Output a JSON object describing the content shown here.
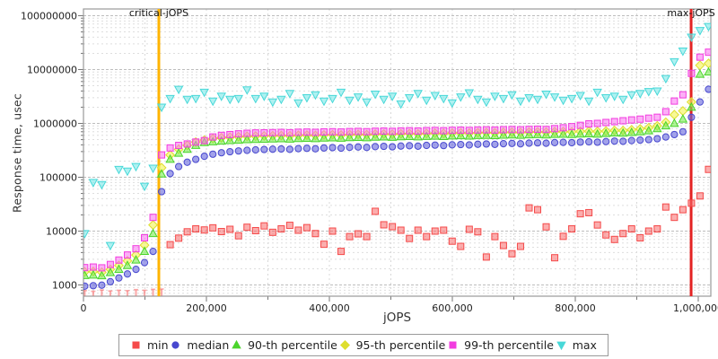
{
  "chart_data": {
    "type": "scatter",
    "title": "",
    "xlabel": "jOPS",
    "ylabel": "Response time, usec",
    "legend_position": "bottom",
    "grid": true,
    "x_axis": {
      "min": 0,
      "max": 1020000,
      "minor_grid_step": 100000,
      "ticks": [
        {
          "value": 0,
          "label": "0"
        },
        {
          "value": 200000,
          "label": "200,000"
        },
        {
          "value": 400000,
          "label": "400,000"
        },
        {
          "value": 600000,
          "label": "600,000"
        },
        {
          "value": 800000,
          "label": "800,000"
        },
        {
          "value": 1000000,
          "label": "1,000,000"
        }
      ]
    },
    "y_axis": {
      "scale": "log",
      "min": 620,
      "max": 133000000,
      "ticks": [
        {
          "value": 1000,
          "label": "1000"
        },
        {
          "value": 10000,
          "label": "10000"
        },
        {
          "value": 100000,
          "label": "100000"
        },
        {
          "value": 1000000,
          "label": "1000000"
        },
        {
          "value": 10000000,
          "label": "10000000"
        },
        {
          "value": 100000000,
          "label": "100000000"
        }
      ]
    },
    "annotations": [
      {
        "label": "critical-jOPS",
        "x": 122600,
        "color": "#ffb400"
      },
      {
        "label": "max-jOPS",
        "x": 988400,
        "color": "#e32222"
      }
    ],
    "x": [
      2000,
      15900,
      29800,
      43700,
      57600,
      71500,
      85400,
      99300,
      113200,
      127100,
      141000,
      154900,
      168800,
      182700,
      196600,
      210500,
      224400,
      238300,
      252200,
      266100,
      280000,
      293900,
      307800,
      321700,
      335600,
      349500,
      363400,
      377300,
      391200,
      405100,
      419000,
      432900,
      446800,
      460700,
      474600,
      488500,
      502400,
      516300,
      530200,
      544100,
      558000,
      571900,
      585800,
      599700,
      613600,
      627500,
      641400,
      655300,
      669200,
      683100,
      697000,
      710900,
      724800,
      738700,
      752600,
      766500,
      780400,
      794300,
      808200,
      822100,
      836000,
      849900,
      863800,
      877700,
      891600,
      905500,
      919400,
      933300,
      947200,
      961100,
      975000,
      988900,
      1002800,
      1016700
    ],
    "draw_order": [
      0,
      1,
      3,
      2,
      4,
      5
    ],
    "series": [
      {
        "name": "min",
        "marker": "square",
        "color": "#f54a4a",
        "fill": "rgba(248,105,105,0.55)",
        "values": [
          700,
          680,
          720,
          690,
          710,
          700,
          730,
          710,
          740,
          750,
          5600,
          7400,
          9700,
          11000,
          10500,
          11500,
          9800,
          10800,
          8200,
          11800,
          10200,
          12500,
          9500,
          11000,
          12800,
          10400,
          11600,
          9000,
          5700,
          10000,
          4200,
          7900,
          8900,
          7900,
          23300,
          13100,
          12100,
          10400,
          7300,
          10400,
          7900,
          10000,
          10400,
          6500,
          5200,
          10800,
          9700,
          3300,
          7900,
          5400,
          3800,
          5200,
          27000,
          25000,
          12000,
          3200,
          8000,
          11000,
          21000,
          22000,
          13000,
          8500,
          7000,
          9000,
          11000,
          7500,
          10000,
          11000,
          28000,
          18000,
          25000,
          33000,
          45000,
          140000
        ]
      },
      {
        "name": "median",
        "marker": "circle",
        "color": "#4848cf",
        "fill": "rgba(100,100,220,0.6)",
        "values": [
          950,
          970,
          990,
          1150,
          1350,
          1600,
          1950,
          2600,
          4200,
          54000,
          117000,
          158000,
          190000,
          215000,
          245000,
          268000,
          285000,
          298000,
          308000,
          316000,
          322000,
          328000,
          332000,
          336000,
          330000,
          340000,
          345000,
          338000,
          350000,
          355000,
          348000,
          360000,
          365000,
          358000,
          370000,
          375000,
          368000,
          380000,
          385000,
          378000,
          390000,
          395000,
          388000,
          400000,
          405000,
          398000,
          410000,
          415000,
          408000,
          420000,
          425000,
          418000,
          430000,
          435000,
          428000,
          440000,
          445000,
          438000,
          450000,
          455000,
          448000,
          460000,
          470000,
          465000,
          480000,
          490000,
          500000,
          520000,
          560000,
          620000,
          700000,
          1300000,
          2500000,
          4300000
        ]
      },
      {
        "name": "90-th percentile",
        "marker": "triangle-up",
        "color": "#4bd42c",
        "fill": "rgba(120,235,80,0.6)",
        "values": [
          1500,
          1530,
          1480,
          1700,
          1950,
          2300,
          2900,
          4200,
          9000,
          115000,
          216000,
          280000,
          330000,
          390000,
          440000,
          455000,
          470000,
          480000,
          490000,
          500000,
          505000,
          510000,
          515000,
          520000,
          512000,
          525000,
          530000,
          522000,
          535000,
          540000,
          532000,
          545000,
          550000,
          542000,
          555000,
          560000,
          552000,
          565000,
          570000,
          562000,
          575000,
          580000,
          572000,
          585000,
          590000,
          582000,
          595000,
          600000,
          592000,
          605000,
          610000,
          602000,
          615000,
          620000,
          612000,
          625000,
          630000,
          622000,
          635000,
          640000,
          632000,
          650000,
          665000,
          660000,
          680000,
          700000,
          730000,
          800000,
          900000,
          1000000,
          1200000,
          2000000,
          8200000,
          9000000
        ]
      },
      {
        "name": "95-th percentile",
        "marker": "diamond",
        "color": "#dede2e",
        "fill": "rgba(244,244,95,0.65)",
        "values": [
          1750,
          1780,
          1720,
          1950,
          2300,
          2800,
          3600,
          5500,
          13000,
          150000,
          260000,
          330000,
          390000,
          450000,
          490000,
          520000,
          540000,
          555000,
          565000,
          575000,
          580000,
          585000,
          590000,
          595000,
          588000,
          600000,
          605000,
          598000,
          610000,
          615000,
          608000,
          620000,
          625000,
          618000,
          630000,
          635000,
          628000,
          640000,
          645000,
          638000,
          650000,
          655000,
          648000,
          660000,
          665000,
          658000,
          670000,
          675000,
          668000,
          680000,
          685000,
          678000,
          690000,
          695000,
          688000,
          700000,
          705000,
          698000,
          710000,
          715000,
          708000,
          720000,
          740000,
          735000,
          760000,
          790000,
          830000,
          900000,
          1050000,
          1450000,
          1700000,
          2500000,
          12000000,
          13000000
        ]
      },
      {
        "name": "99-th percentile",
        "marker": "square",
        "color": "#f23cdf",
        "fill": "rgba(250,110,240,0.55)",
        "values": [
          2100,
          2150,
          2080,
          2400,
          2900,
          3600,
          4700,
          7500,
          18000,
          260000,
          350000,
          390000,
          415000,
          450000,
          480000,
          560000,
          600000,
          620000,
          640000,
          655000,
          665000,
          670000,
          675000,
          680000,
          672000,
          685000,
          690000,
          682000,
          695000,
          700000,
          692000,
          705000,
          710000,
          702000,
          715000,
          720000,
          712000,
          725000,
          730000,
          722000,
          735000,
          740000,
          732000,
          745000,
          750000,
          742000,
          755000,
          760000,
          752000,
          765000,
          770000,
          762000,
          775000,
          780000,
          772000,
          800000,
          830000,
          870000,
          920000,
          980000,
          1000000,
          1040000,
          1080000,
          1120000,
          1160000,
          1200000,
          1250000,
          1300000,
          1650000,
          2600000,
          3400000,
          8500000,
          17000000,
          21000000
        ]
      },
      {
        "name": "max",
        "marker": "triangle-down",
        "color": "#48d8d8",
        "fill": "rgba(120,232,232,0.6)",
        "values": [
          9000,
          80000,
          73000,
          5400,
          140000,
          130000,
          158000,
          68000,
          147000,
          2000000,
          2900000,
          4300000,
          2800000,
          2900000,
          3800000,
          2600000,
          3200000,
          2800000,
          2900000,
          4200000,
          2900000,
          3200000,
          2500000,
          2800000,
          3600000,
          2400000,
          3000000,
          3400000,
          2600000,
          2900000,
          3800000,
          2700000,
          3100000,
          2500000,
          3500000,
          2800000,
          3200000,
          2300000,
          3000000,
          3600000,
          2700000,
          3300000,
          2900000,
          2400000,
          3100000,
          3700000,
          2800000,
          2500000,
          3200000,
          2900000,
          3400000,
          2600000,
          3000000,
          2800000,
          3500000,
          3100000,
          2700000,
          2900000,
          3300000,
          2600000,
          3800000,
          3000000,
          3200000,
          2800000,
          3400000,
          3600000,
          3900000,
          4000000,
          6800000,
          14000000,
          22000000,
          40000000,
          53000000,
          63000000
        ]
      }
    ]
  }
}
